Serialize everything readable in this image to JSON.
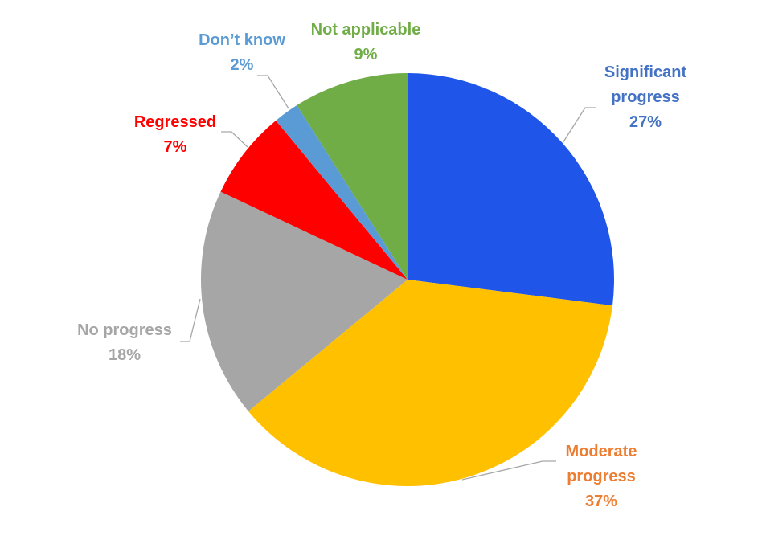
{
  "chart_data": {
    "type": "pie",
    "title": "",
    "start_angle_deg": 0,
    "direction": "clockwise",
    "slices": [
      {
        "label_lines": [
          "Significant",
          "progress"
        ],
        "value": 27,
        "value_label": "27%",
        "color": "#1f55e8",
        "label_color": "#4472c4"
      },
      {
        "label_lines": [
          "Moderate",
          "progress"
        ],
        "value": 37,
        "value_label": "37%",
        "color": "#ffc000",
        "label_color": "#ed7d31"
      },
      {
        "label_lines": [
          "No progress"
        ],
        "value": 18,
        "value_label": "18%",
        "color": "#a6a6a6",
        "label_color": "#a6a6a6"
      },
      {
        "label_lines": [
          "Regressed"
        ],
        "value": 7,
        "value_label": "7%",
        "color": "#ff0000",
        "label_color": "#ff0000"
      },
      {
        "label_lines": [
          "Don’t know"
        ],
        "value": 2,
        "value_label": "2%",
        "color": "#5b9bd5",
        "label_color": "#5b9bd5"
      },
      {
        "label_lines": [
          "Not applicable"
        ],
        "value": 9,
        "value_label": "9%",
        "color": "#70ad47",
        "label_color": "#70ad47"
      }
    ]
  }
}
